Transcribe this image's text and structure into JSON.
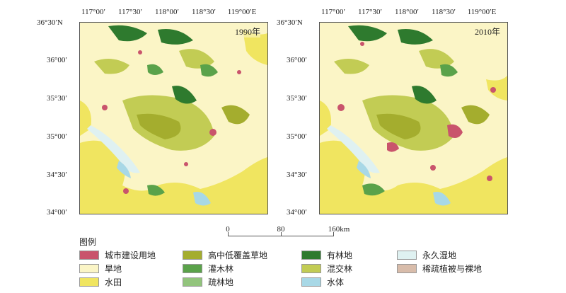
{
  "maps": [
    {
      "year_label": "1990年"
    },
    {
      "year_label": "2010年"
    }
  ],
  "axes": {
    "longitudes": [
      "117°00′",
      "117°30′",
      "118°00′",
      "118°30′",
      "119°00′E"
    ],
    "latitudes": [
      "36°30′N",
      "36°00′",
      "35°30′",
      "35°00′",
      "34°30′",
      "34°00′"
    ]
  },
  "scale_bar": {
    "labels": [
      "0",
      "80",
      "160km"
    ]
  },
  "legend": {
    "title": "图例",
    "items": [
      {
        "label": "城市建设用地",
        "color": "#c9546c"
      },
      {
        "label": "旱地",
        "color": "#fbf5c6"
      },
      {
        "label": "水田",
        "color": "#f0e560"
      },
      {
        "label": "高中低覆盖草地",
        "color": "#a4ad2e"
      },
      {
        "label": "灌木林",
        "color": "#5aa24a"
      },
      {
        "label": "疏林地",
        "color": "#92c47c"
      },
      {
        "label": "有林地",
        "color": "#2e7a2e"
      },
      {
        "label": "混交林",
        "color": "#c2cc54"
      },
      {
        "label": "水体",
        "color": "#a8d8e6"
      },
      {
        "label": "永久湿地",
        "color": "#dff1f1"
      },
      {
        "label": "稀疏植被与裸地",
        "color": "#d8bcaa"
      }
    ]
  }
}
